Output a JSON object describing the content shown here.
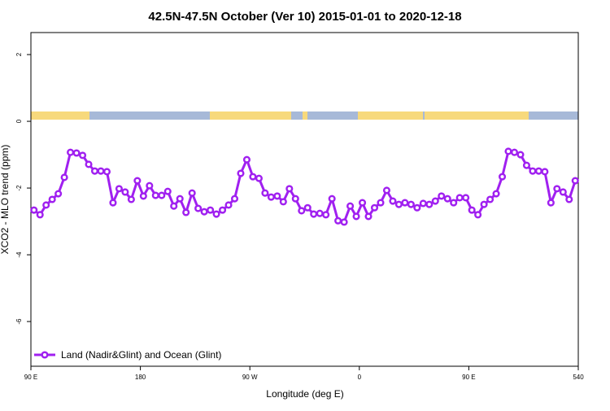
{
  "chart_data": {
    "type": "line",
    "title": "42.5N-47.5N October (Ver 10)   2015-01-01 to 2020-12-18",
    "x_label": "Longitude (deg E)",
    "y_label": "XCO2 - MLO trend (ppm)",
    "xlim": [
      90,
      540
    ],
    "ylim": [
      -7.34,
      2.66
    ],
    "xticks": [
      {
        "value": 90,
        "label": "90 E"
      },
      180,
      {
        "value": 270,
        "label": "90 W"
      },
      {
        "value": 360,
        "label": "0"
      },
      {
        "value": 450,
        "label": "90 E"
      },
      540
    ],
    "yticks": [
      2,
      0,
      -2,
      -4,
      -6
    ],
    "legend": "bottom-left",
    "x": [
      92.5,
      97.5,
      102.5,
      107.5,
      112.5,
      117.5,
      122.5,
      127.5,
      132.5,
      137.5,
      142.5,
      147.5,
      152.5,
      157.5,
      162.5,
      167.5,
      172.5,
      177.5,
      182.5,
      187.5,
      192.5,
      197.5,
      202.5,
      207.5,
      212.5,
      217.5,
      222.5,
      227.5,
      232.5,
      237.5,
      242.5,
      247.5,
      252.5,
      257.5,
      262.5,
      267.5,
      272.5,
      277.5,
      282.5,
      287.5,
      292.5,
      297.5,
      302.5,
      307.5,
      312.5,
      317.5,
      322.5,
      327.5,
      332.5,
      337.5,
      342.5,
      347.5,
      352.5,
      357.5,
      362.5,
      367.5,
      372.5,
      377.5,
      382.5,
      387.5,
      392.5,
      397.5,
      402.5,
      407.5,
      412.5,
      417.5,
      422.5,
      427.5,
      432.5,
      437.5,
      442.5,
      447.5,
      452.5,
      457.5,
      462.5,
      467.5,
      472.5,
      477.5,
      482.5,
      487.5,
      492.5,
      497.5,
      502.5,
      507.5,
      512.5,
      517.5,
      522.5,
      527.5,
      532.5,
      537.5
    ],
    "series": [
      {
        "name": "Land (Nadir&Glint) and Ocean (Glint)",
        "color": "#a020f0",
        "values": [
          -2.66,
          -2.8,
          -2.51,
          -2.34,
          -2.17,
          -1.68,
          -0.93,
          -0.95,
          -1.02,
          -1.29,
          -1.49,
          -1.49,
          -1.51,
          -2.44,
          -2.02,
          -2.12,
          -2.34,
          -1.78,
          -2.24,
          -1.93,
          -2.22,
          -2.22,
          -2.1,
          -2.54,
          -2.32,
          -2.73,
          -2.15,
          -2.61,
          -2.71,
          -2.66,
          -2.78,
          -2.66,
          -2.51,
          -2.32,
          -1.56,
          -1.15,
          -1.66,
          -1.71,
          -2.15,
          -2.27,
          -2.24,
          -2.41,
          -2.02,
          -2.32,
          -2.68,
          -2.59,
          -2.78,
          -2.76,
          -2.8,
          -2.32,
          -2.98,
          -3.02,
          -2.54,
          -2.85,
          -2.44,
          -2.85,
          -2.59,
          -2.44,
          -2.07,
          -2.39,
          -2.49,
          -2.44,
          -2.49,
          -2.59,
          -2.46,
          -2.49,
          -2.39,
          -2.24,
          -2.32,
          -2.44,
          -2.29,
          -2.29,
          -2.66,
          -2.8,
          -2.49,
          -2.34,
          -2.17,
          -1.66,
          -0.9,
          -0.93,
          -1.0,
          -1.32,
          -1.49,
          -1.49,
          -1.51,
          -2.44,
          -2.02,
          -2.12,
          -2.34,
          -1.78
        ]
      }
    ]
  }
}
